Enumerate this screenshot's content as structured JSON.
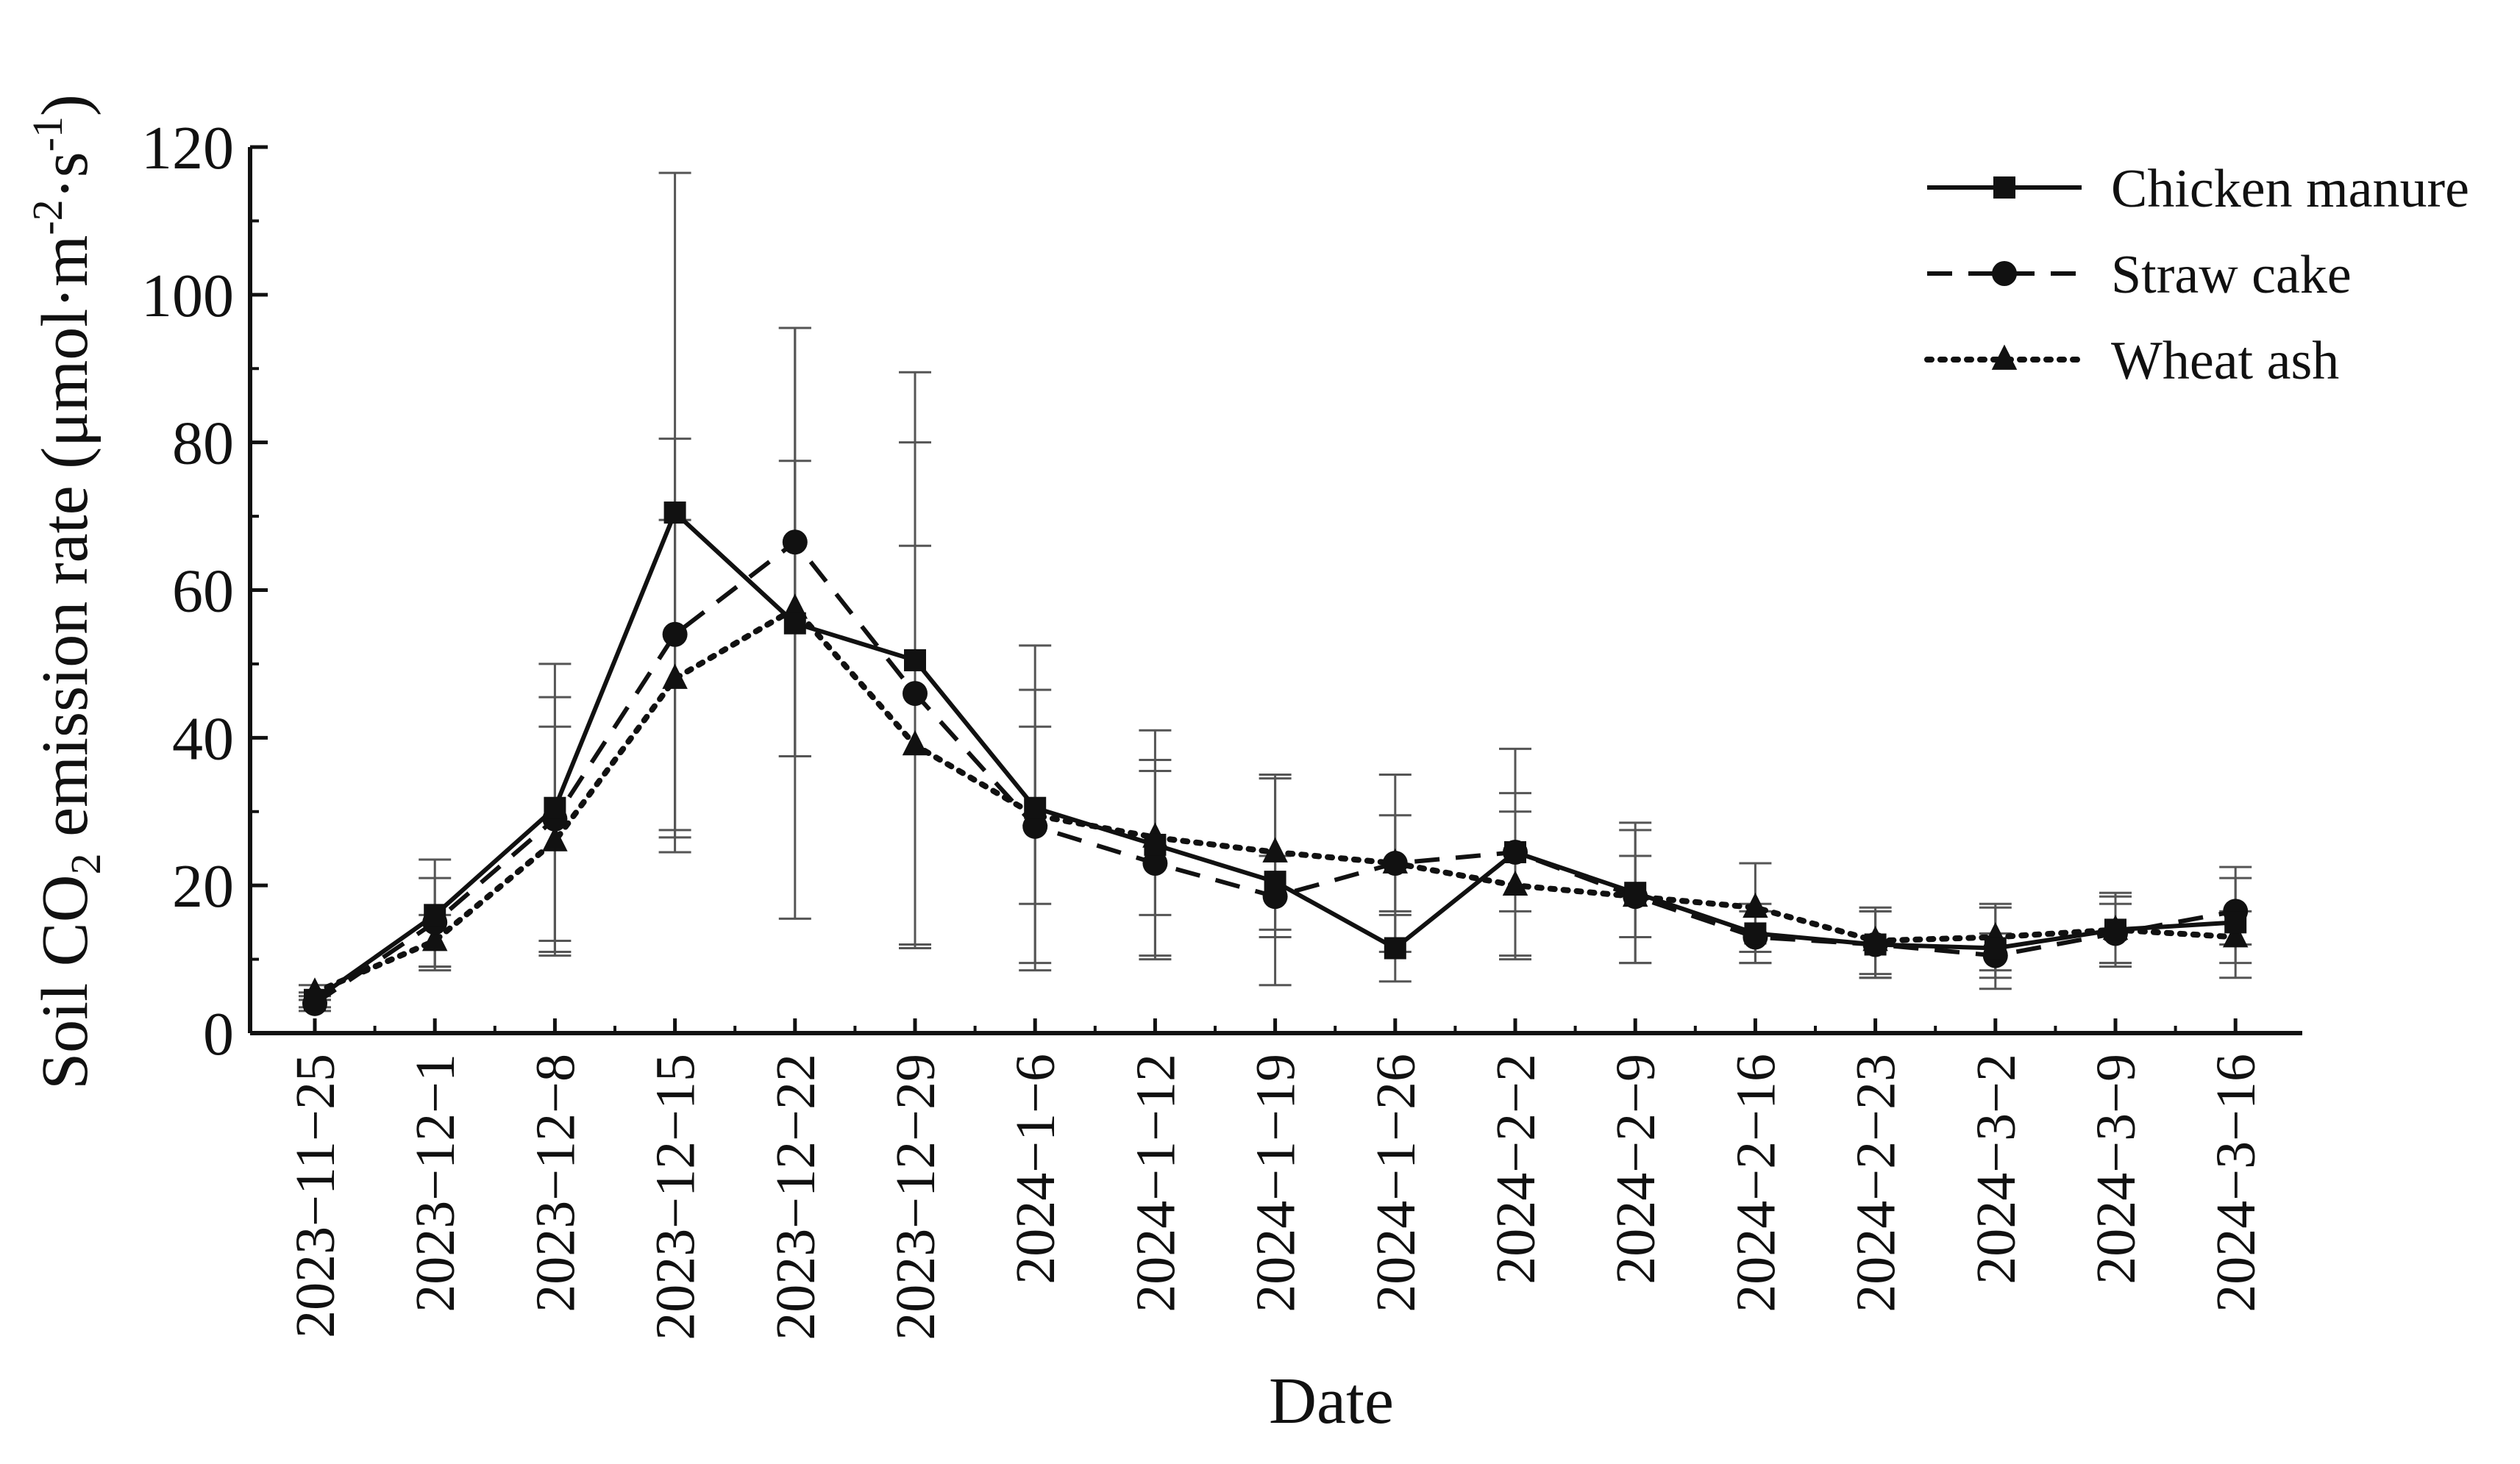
{
  "chart_data": {
    "type": "line",
    "title": "",
    "xlabel": "Date",
    "ylabel": {
      "prefix": "Soil CO",
      "prefix_sub": "2",
      "mid": " emission rate (μmol·m",
      "sup1": "-2",
      "mid2": "·s",
      "sup2": "-1",
      "suffix": ")"
    },
    "ylim": [
      0,
      120
    ],
    "yticks": [
      "0",
      "20",
      "40",
      "60",
      "80",
      "100",
      "120"
    ],
    "categories": [
      "2023−11−25",
      "2023−12−1",
      "2023−12−8",
      "2023−12−15",
      "2023−12−22",
      "2023−12−29",
      "2024−1−6",
      "2024−1−12",
      "2024−1−19",
      "2024−1−26",
      "2024−2−2",
      "2024−2−9",
      "2024−2−16",
      "2024−2−23",
      "2024−3−2",
      "2024−3−9",
      "2024−3−16"
    ],
    "legend_position": "top-right",
    "series": [
      {
        "name": "Chicken manure",
        "marker": "square",
        "line": "solid",
        "values": [
          4.5,
          16.0,
          30.5,
          70.5,
          55.5,
          50.5,
          30.5,
          25.5,
          20.5,
          11.5,
          24.5,
          19.0,
          13.5,
          12.0,
          11.5,
          14.0,
          15.0
        ],
        "errors": [
          1.0,
          7.5,
          19.5,
          46.0,
          40.0,
          39.0,
          22.0,
          15.5,
          14.0,
          4.5,
          14.0,
          9.5,
          4.0,
          4.5,
          5.5,
          5.0,
          7.5
        ]
      },
      {
        "name": "Straw cake",
        "marker": "circle",
        "line": "dashed",
        "values": [
          4.0,
          15.0,
          29.0,
          54.0,
          66.5,
          46.0,
          28.0,
          23.0,
          18.5,
          23.0,
          24.5,
          18.5,
          13.0,
          12.0,
          10.5,
          13.5,
          16.5
        ],
        "errors": [
          1.0,
          6.0,
          16.5,
          26.5,
          29.0,
          34.0,
          18.5,
          12.5,
          5.5,
          6.5,
          8.0,
          5.5,
          3.5,
          4.5,
          3.0,
          4.0,
          4.5
        ]
      },
      {
        "name": "Wheat ash",
        "marker": "triangle",
        "line": "dotted",
        "values": [
          5.5,
          12.5,
          26.0,
          48.0,
          57.5,
          39.0,
          29.5,
          26.5,
          24.5,
          23.0,
          20.0,
          18.5,
          17.0,
          12.5,
          13.0,
          14.0,
          13.0
        ],
        "errors": [
          1.0,
          3.5,
          15.5,
          21.5,
          20.0,
          27.0,
          12.0,
          10.5,
          10.5,
          12.0,
          10.0,
          9.0,
          6.0,
          4.5,
          4.5,
          4.5,
          3.5
        ]
      }
    ]
  }
}
